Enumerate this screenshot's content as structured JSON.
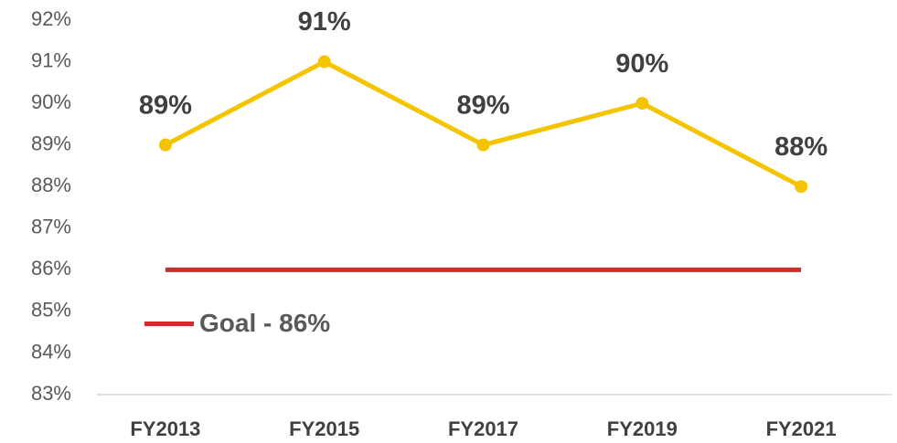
{
  "chart_data": {
    "type": "line",
    "categories": [
      "FY2013",
      "FY2015",
      "FY2017",
      "FY2019",
      "FY2021"
    ],
    "series": [
      {
        "color": "#f5c400",
        "values": [
          89,
          91,
          89,
          90,
          88
        ],
        "value_labels": [
          "89%",
          "91%",
          "89%",
          "90%",
          "88%"
        ]
      },
      {
        "name": "Goal - 86%",
        "color": "#c9302c",
        "values": [
          86,
          86,
          86,
          86,
          86
        ]
      }
    ],
    "ylim": [
      83,
      92
    ],
    "yticks": [
      {
        "value": 83,
        "label": "83%"
      },
      {
        "value": 84,
        "label": "84%"
      },
      {
        "value": 85,
        "label": "85%"
      },
      {
        "value": 86,
        "label": "86%"
      },
      {
        "value": 87,
        "label": "87%"
      },
      {
        "value": 88,
        "label": "88%"
      },
      {
        "value": 89,
        "label": "89%"
      },
      {
        "value": 90,
        "label": "90%"
      },
      {
        "value": 91,
        "label": "91%"
      },
      {
        "value": 92,
        "label": "92%"
      }
    ],
    "grid": false,
    "legend": "left"
  }
}
